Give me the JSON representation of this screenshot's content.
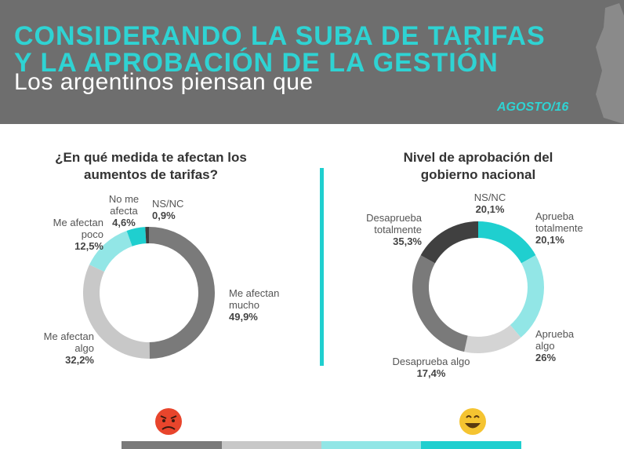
{
  "header": {
    "title_line1": "CONSIDERANDO LA SUBA DE TARIFAS",
    "title_line2": "Y LA APROBACIÓN DE LA GESTIÓN",
    "subtitle": "Los argentinos piensan que",
    "date": "AGOSTO/16"
  },
  "chart_data": [
    {
      "type": "donut",
      "title": "¿En qué medida te afectan los aumentos de tarifas?",
      "categories": [
        "Me afectan mucho",
        "Me afectan algo",
        "Me afectan poco",
        "No me afecta",
        "NS/NC"
      ],
      "values": [
        49.9,
        32.2,
        12.5,
        4.6,
        0.9
      ],
      "value_labels": [
        "49,9%",
        "32,2%",
        "12,5%",
        "4,6%",
        "0,9%"
      ],
      "colors": [
        "#7a7a7a",
        "#c8c8c8",
        "#92e6e6",
        "#1fcfcf",
        "#404040"
      ]
    },
    {
      "type": "donut",
      "title": "Nivel de aprobación del gobierno nacional",
      "categories": [
        "Aprueba totalmente",
        "Aprueba algo",
        "Desaprueba algo",
        "Desaprueba totalmente",
        "NS/NC"
      ],
      "values": [
        20.1,
        26,
        17.4,
        35.3,
        20.1
      ],
      "value_labels": [
        "20,1%",
        "26%",
        "17,4%",
        "35,3%",
        "20,1%"
      ],
      "colors": [
        "#1fcfcf",
        "#92e6e6",
        "#d4d4d4",
        "#7a7a7a",
        "#404040"
      ]
    }
  ]
}
